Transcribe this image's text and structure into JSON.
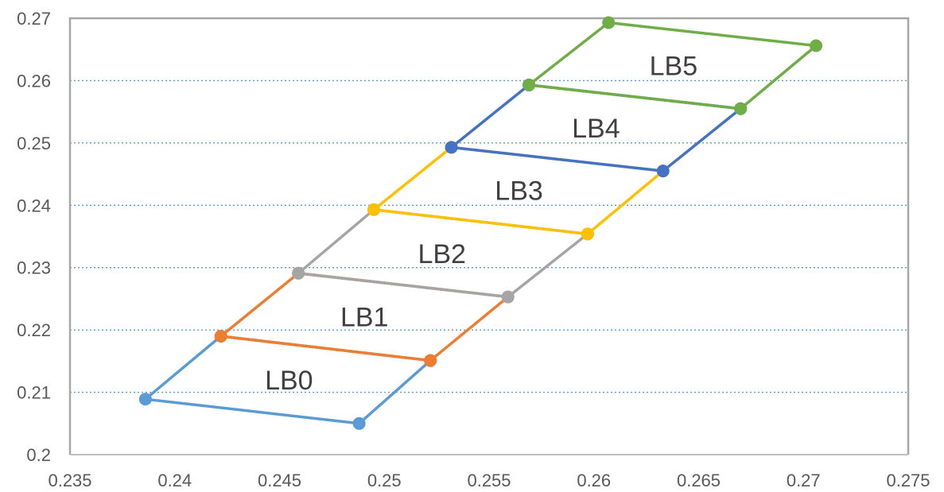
{
  "chart_data": {
    "type": "scatter",
    "title": "",
    "xlabel": "",
    "ylabel": "",
    "xlim": [
      0.235,
      0.275
    ],
    "ylim": [
      0.2,
      0.27
    ],
    "x_ticks": [
      "0.235",
      "0.24",
      "0.245",
      "0.25",
      "0.255",
      "0.26",
      "0.265",
      "0.27",
      "0.275"
    ],
    "y_ticks": [
      "0.2",
      "0.21",
      "0.22",
      "0.23",
      "0.24",
      "0.25",
      "0.26",
      "0.27"
    ],
    "grid": "horizontal-dotted",
    "legend": "none",
    "series": [
      {
        "label": "LB0",
        "color": "#5b9bd5",
        "points": [
          [
            0.2386,
            0.2089
          ],
          [
            0.2488,
            0.205
          ],
          [
            0.2522,
            0.2151
          ],
          [
            0.2422,
            0.219
          ]
        ]
      },
      {
        "label": "LB1",
        "color": "#ed7d31",
        "points": [
          [
            0.2422,
            0.219
          ],
          [
            0.2522,
            0.2151
          ],
          [
            0.2559,
            0.2253
          ],
          [
            0.2459,
            0.2291
          ]
        ]
      },
      {
        "label": "LB2",
        "color": "#a5a5a5",
        "points": [
          [
            0.2459,
            0.2291
          ],
          [
            0.2559,
            0.2253
          ],
          [
            0.2597,
            0.2354
          ],
          [
            0.2495,
            0.2393
          ]
        ]
      },
      {
        "label": "LB3",
        "color": "#ffc000",
        "points": [
          [
            0.2495,
            0.2393
          ],
          [
            0.2597,
            0.2354
          ],
          [
            0.2633,
            0.2455
          ],
          [
            0.2532,
            0.2493
          ]
        ]
      },
      {
        "label": "LB4",
        "color": "#4472c4",
        "points": [
          [
            0.2532,
            0.2493
          ],
          [
            0.2633,
            0.2455
          ],
          [
            0.267,
            0.2555
          ],
          [
            0.2569,
            0.2593
          ]
        ]
      },
      {
        "label": "LB5",
        "color": "#70ad47",
        "points": [
          [
            0.2569,
            0.2593
          ],
          [
            0.267,
            0.2555
          ],
          [
            0.2706,
            0.2656
          ],
          [
            0.2607,
            0.2693
          ]
        ]
      }
    ]
  }
}
